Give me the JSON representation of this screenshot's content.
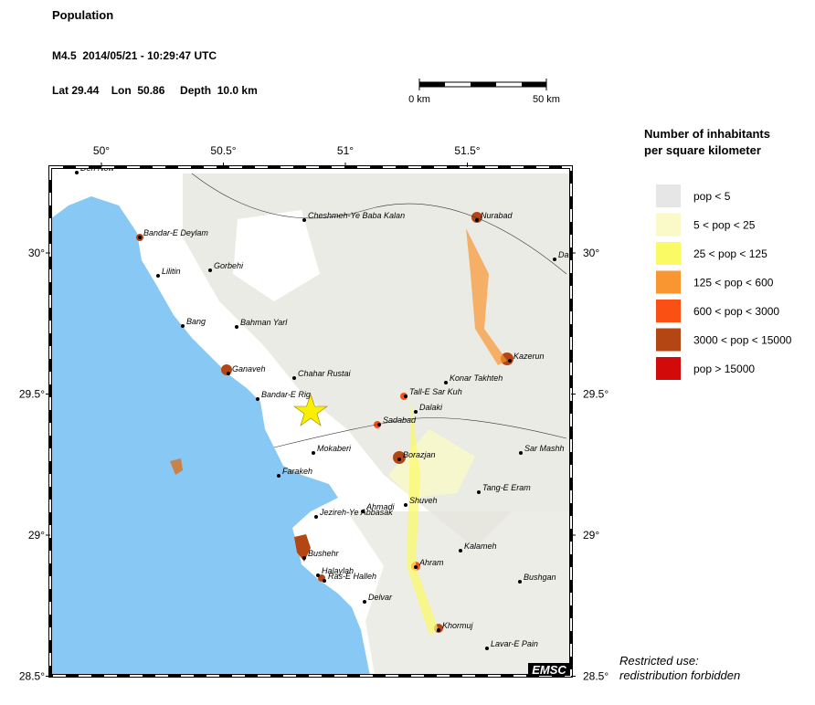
{
  "header": {
    "title": "Population",
    "event": "M4.5  2014/05/21 - 10:29:47 UTC",
    "location": "Lat 29.44    Lon  50.86     Depth  10.0 km"
  },
  "scale_bar": {
    "start": "0 km",
    "end": "50 km"
  },
  "map": {
    "lon_ticks": [
      {
        "value": 50,
        "label": "50°"
      },
      {
        "value": 50.5,
        "label": "50.5°"
      },
      {
        "value": 51,
        "label": "51°"
      },
      {
        "value": 51.5,
        "label": "51.5°"
      }
    ],
    "lat_ticks": [
      {
        "value": 30,
        "label": "30°"
      },
      {
        "value": 29.5,
        "label": "29.5°"
      },
      {
        "value": 29,
        "label": "29°"
      },
      {
        "value": 28.5,
        "label": "28.5°"
      }
    ],
    "cities": [
      "Deh Now",
      "Bandar-E Deylam",
      "Lilitin",
      "Gorbehi",
      "Cheshmeh-Ye Baba Kalan",
      "Nurabad",
      "Da",
      "Bang",
      "Bahman Yarl",
      "Ganaveh",
      "Chahar Rustai",
      "Bandar-E Rig",
      "Tall-E Sar Kuh",
      "Konar Takhteh",
      "Kazerun",
      "Dalaki",
      "Sadabad",
      "Mokaberi",
      "Borazjan",
      "Sar Mashh",
      "Farakeh",
      "Tang-E Eram",
      "Shuveh",
      "Ahmadi",
      "Jezireh-Ye Abbasak",
      "Kalameh",
      "Ahram",
      "Bushehr",
      "Halaylah",
      "Ras-E Halleh",
      "Bushgan",
      "Delvar",
      "Khormuj",
      "Lavar-E Pain"
    ],
    "badge": "EMSC"
  },
  "legend": {
    "title": [
      "Number of inhabitants",
      "per square kilometer"
    ],
    "items": [
      {
        "label": "pop < 5",
        "color": "#e6e6e6"
      },
      {
        "label": "5 < pop < 25",
        "color": "#fafac8"
      },
      {
        "label": "25 < pop < 125",
        "color": "#fafa64"
      },
      {
        "label": "125 < pop < 600",
        "color": "#fa9632"
      },
      {
        "label": "600 < pop < 3000",
        "color": "#fa5014"
      },
      {
        "label": "3000 < pop < 15000",
        "color": "#b44614"
      },
      {
        "label": "pop > 15000",
        "color": "#d20a0a"
      }
    ]
  },
  "notice": [
    "Restricted use:",
    "redistribution forbidden"
  ]
}
